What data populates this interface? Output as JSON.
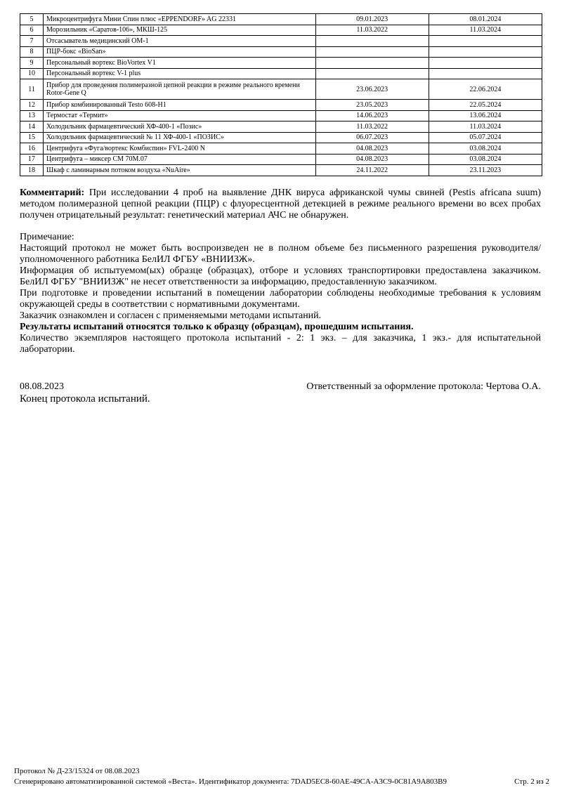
{
  "equipment": [
    {
      "n": "5",
      "name": "Микроцентрифуга Мини Спин плюс «EPPENDORF» AG 22331",
      "from": "09.01.2023",
      "to": "08.01.2024"
    },
    {
      "n": "6",
      "name": "Морозильник «Саратов-106», МКШ-125",
      "from": "11.03.2022",
      "to": "11.03.2024"
    },
    {
      "n": "7",
      "name": "Отсасыватель медицинский ОМ-1",
      "from": "",
      "to": ""
    },
    {
      "n": "8",
      "name": "ПЦР-бокс «BioSan»",
      "from": "",
      "to": ""
    },
    {
      "n": "9",
      "name": "Персональный вортекс BioVortex V1",
      "from": "",
      "to": ""
    },
    {
      "n": "10",
      "name": "Персональный вортекс V-1 plus",
      "from": "",
      "to": ""
    },
    {
      "n": "11",
      "name": "Прибор для проведения полимеразной цепной реакции в режиме реального времени Rotor-Gene Q",
      "from": "23.06.2023",
      "to": "22.06.2024"
    },
    {
      "n": "12",
      "name": "Прибор комбинированный Testo 608-H1",
      "from": "23.05.2023",
      "to": "22.05.2024"
    },
    {
      "n": "13",
      "name": "Термостат «Термит»",
      "from": "14.06.2023",
      "to": "13.06.2024"
    },
    {
      "n": "14",
      "name": "Холодильник фармацевтический ХФ-400-1 «Позис»",
      "from": "11.03.2022",
      "to": "11.03.2024"
    },
    {
      "n": "15",
      "name": "Холодильник фармацевтический № 11 ХФ-400-1 «ПОЗИС»",
      "from": "06.07.2023",
      "to": "05.07.2024"
    },
    {
      "n": "16",
      "name": "Центрифуга «Фуга/вортекс Комбиспин» FVL-2400 N",
      "from": "04.08.2023",
      "to": "03.08.2024"
    },
    {
      "n": "17",
      "name": "Центрифуга – миксер СМ 70М.07",
      "from": "04.08.2023",
      "to": "03.08.2024"
    },
    {
      "n": "18",
      "name": "Шкаф с ламинарным потоком воздуха «NuAire»",
      "from": "24.11.2022",
      "to": "23.11.2023"
    }
  ],
  "comment": {
    "label": "Комментарий:",
    "text": " При исследовании 4 проб на выявление ДНК вируса африканской чумы свиней (Pestis africana suum) методом полимеразной цепной реакции (ПЦР) с флуоресцентной детекцией в режиме реального времени во всех пробах получен отрицательный результат: генетический материал АЧС не обнаружен."
  },
  "note": {
    "title": "Примечание:",
    "lines": [
      "Настоящий протокол не может быть воспроизведен не в полном объеме без письменного разрешения руководителя/уполномоченного работника БелИЛ ФГБУ «ВНИИЗЖ».",
      "Информация об испытуемом(ых) образце (образцах), отборе и условиях транспортировки предоставлена заказчиком. БелИЛ ФГБУ \"ВНИИЗЖ\" не несет ответственности за информацию, предоставленную заказчиком.",
      "При подготовке и проведении испытаний в помещении лаборатории соблюдены необходимые требования к условиям окружающей среды в соответствии с нормативными документами.",
      "Заказчик ознакомлен и согласен с применяемыми методами испытаний."
    ],
    "bold": "Результаты испытаний относятся только к образцу (образцам), прошедшим испытания.",
    "copies": "Количество экземпляров настоящего протокола испытаний - 2: 1 экз. – для заказчика, 1 экз.- для испытательной лаборатории."
  },
  "signature": {
    "date": "08.08.2023",
    "responsible": "Ответственный за оформление протокола: Чертова О.А.",
    "end": "Конец протокола испытаний."
  },
  "footer": {
    "protocol": "Протокол № Д-23/15324 от 08.08.2023",
    "generated": "Сгенерировано автоматизированной системой «Веста». Идентификатор документа: 7DAD5EC8-60AE-49CA-A3C9-0C81A9A803B9",
    "page": "Стр. 2 из 2"
  }
}
